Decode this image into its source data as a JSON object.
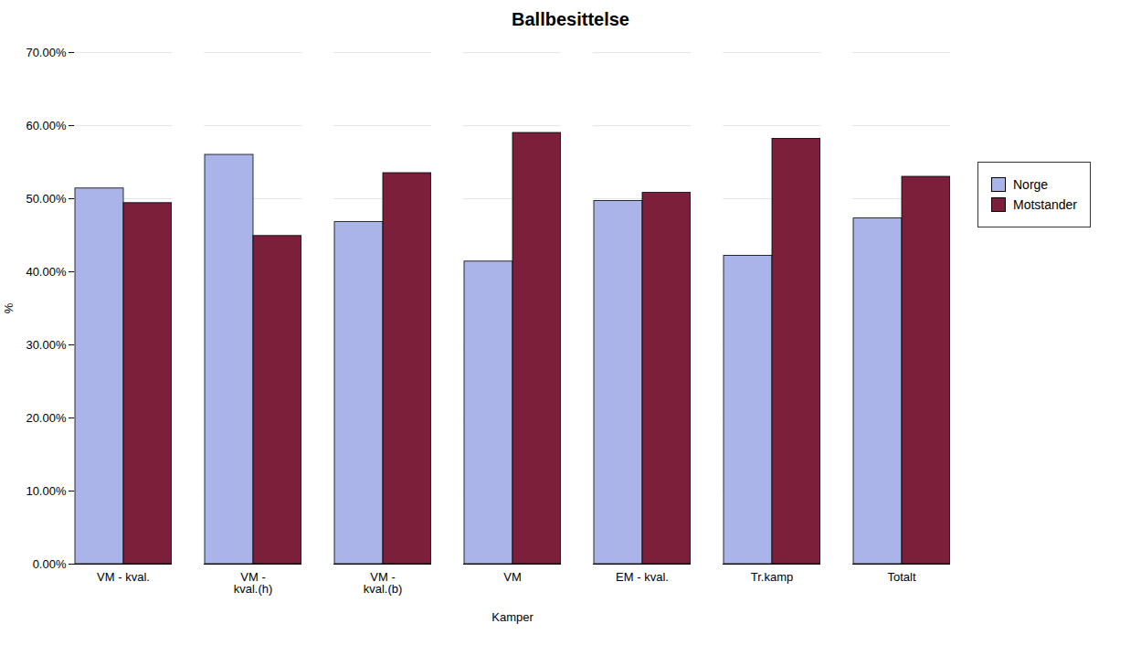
{
  "chart_data": {
    "type": "bar",
    "title": "Ballbesittelse",
    "xlabel": "Kamper",
    "ylabel": "%",
    "categories": [
      "VM - kval.",
      "VM -\nkval.(h)",
      "VM -\nkval.(b)",
      "VM",
      "EM - kval.",
      "Tr.kamp",
      "Totalt"
    ],
    "series": [
      {
        "name": "Norge",
        "color": "#aab4e8",
        "values": [
          0.514,
          0.56,
          0.468,
          0.414,
          0.497,
          0.422,
          0.473
        ]
      },
      {
        "name": "Motstander",
        "color": "#7b1f3a",
        "values": [
          0.494,
          0.449,
          0.535,
          0.59,
          0.508,
          0.582,
          0.53
        ]
      }
    ],
    "ylim": [
      0.0,
      0.7
    ],
    "yticks": [
      {
        "value": 0.0,
        "label": "0.00%"
      },
      {
        "value": 0.1,
        "label": "10.00%"
      },
      {
        "value": 0.2,
        "label": "20.00%"
      },
      {
        "value": 0.3,
        "label": "30.00%"
      },
      {
        "value": 0.4,
        "label": "40.00%"
      },
      {
        "value": 0.5,
        "label": "50.00%"
      },
      {
        "value": 0.6,
        "label": "60.00%"
      },
      {
        "value": 0.7,
        "label": "70.00%"
      }
    ],
    "grid": true,
    "legend": "right"
  }
}
